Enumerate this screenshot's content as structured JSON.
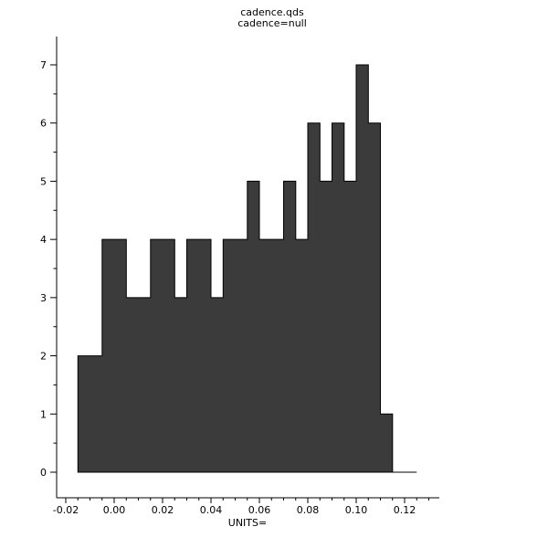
{
  "title": {
    "line1": "cadence.qds",
    "line2": "cadence=null"
  },
  "axes": {
    "x_label": "UNITS=",
    "x_tick_labels": [
      "-0.02",
      "0.00",
      "0.02",
      "0.04",
      "0.06",
      "0.08",
      "0.10",
      "0.12"
    ],
    "x_tick_values": [
      -0.02,
      0.0,
      0.02,
      0.04,
      0.06,
      0.08,
      0.1,
      0.12
    ],
    "x_minor_step": 0.005,
    "x_minor_start": -0.025,
    "x_minor_end": 0.13,
    "y_tick_labels": [
      "0",
      "1",
      "2",
      "3",
      "4",
      "5",
      "6",
      "7"
    ],
    "y_tick_values": [
      0,
      1,
      2,
      3,
      4,
      5,
      6,
      7
    ],
    "y_minor_step": 0.5,
    "axis_color": "#000000"
  },
  "chart_data": {
    "type": "bar",
    "subtype": "histogram",
    "title": "cadence.qds",
    "subtitle": "cadence=null",
    "xlabel": "UNITS=",
    "ylabel": "",
    "xlim": [
      -0.025,
      0.134
    ],
    "ylim": [
      0,
      7.5
    ],
    "bin_start": -0.015,
    "bin_width": 0.005,
    "bin_end": 0.125,
    "counts": [
      2,
      2,
      4,
      4,
      3,
      3,
      4,
      4,
      3,
      4,
      4,
      3,
      4,
      4,
      5,
      4,
      4,
      5,
      4,
      6,
      5,
      6,
      5,
      7,
      6,
      1,
      0,
      0
    ],
    "bar_fill_color": "#3b3b3b",
    "bar_outline_color": "#000000",
    "legend": null,
    "grid": false
  }
}
